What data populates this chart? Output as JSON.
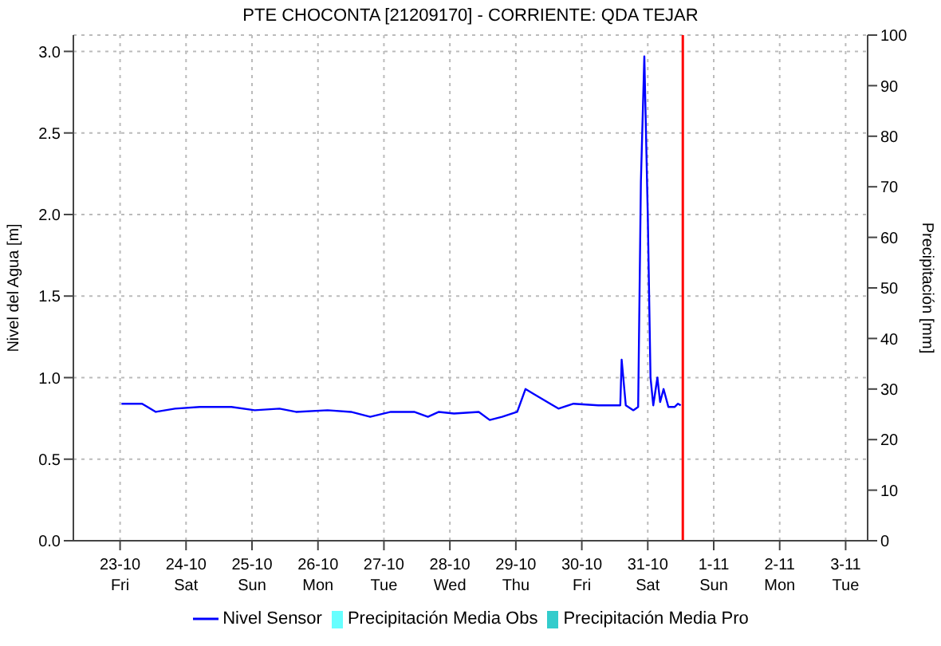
{
  "chart_data": {
    "type": "line",
    "title": "PTE CHOCONTA [21209170] - CORRIENTE: QDA TEJAR",
    "ylabel": "Nivel del Agua [m]",
    "y2label": "Precipitación [mm]",
    "xlim": [
      "--10-22T07:00",
      "--11-03T08:00"
    ],
    "xticks": [
      {
        "value": "--10-23",
        "label": "23-10\nFri"
      },
      {
        "value": "--10-24",
        "label": "24-10\nSat"
      },
      {
        "value": "--10-25",
        "label": "25-10\nSun"
      },
      {
        "value": "--10-26",
        "label": "26-10\nMon"
      },
      {
        "value": "--10-27",
        "label": "27-10\nTue"
      },
      {
        "value": "--10-28",
        "label": "28-10\nWed"
      },
      {
        "value": "--10-29",
        "label": "29-10\nThu"
      },
      {
        "value": "--10-30",
        "label": "30-10\nFri"
      },
      {
        "value": "--10-31",
        "label": "31-10\nSat"
      },
      {
        "value": "--11-01",
        "label": "1-11\nSun"
      },
      {
        "value": "--11-02",
        "label": "2-11\nMon"
      },
      {
        "value": "--11-03",
        "label": "3-11\nTue"
      }
    ],
    "ylim": [
      0,
      3.1
    ],
    "yticks": [
      {
        "value": 0,
        "label": "0.0"
      },
      {
        "value": 0.5,
        "label": "0.5"
      },
      {
        "value": 1,
        "label": "1.0"
      },
      {
        "value": 1.5,
        "label": "1.5"
      },
      {
        "value": 2,
        "label": "2.0"
      },
      {
        "value": 2.5,
        "label": "2.5"
      },
      {
        "value": 3,
        "label": "3.0"
      }
    ],
    "y2lim": [
      0,
      100
    ],
    "y2ticks": [
      0,
      10,
      20,
      30,
      40,
      50,
      60,
      70,
      80,
      90,
      100
    ],
    "grid": true,
    "legend": "bottom",
    "marker": "none",
    "line_style": "solid",
    "ref_lines": [
      {
        "axis": "x",
        "value": "--10-31T12:45",
        "color": "#ff0000"
      }
    ],
    "series": [
      {
        "name": "Nivel Sensor",
        "color": "#0000ff",
        "x": [
          "--10-23T00:30",
          "--10-23T08:00",
          "--10-23T13:00",
          "--10-23T20:00",
          "--10-24T05:00",
          "--10-24T16:30",
          "--10-25T01:00",
          "--10-25T10:00",
          "--10-25T16:00",
          "--10-26T03:30",
          "--10-26T12:00",
          "--10-26T19:00",
          "--10-27T02:30",
          "--10-27T11:00",
          "--10-27T16:00",
          "--10-27T20:00",
          "--10-28T01:30",
          "--10-28T10:30",
          "--10-28T14:30",
          "--10-28T19:00",
          "--10-29T00:30",
          "--10-29T03:30",
          "--10-29T06:30",
          "--10-29T15:30",
          "--10-29T21:00",
          "--10-30T06:00",
          "--10-30T14:00",
          "--10-30T14:30",
          "--10-30T16:00",
          "--10-30T18:45",
          "--10-30T20:30",
          "--10-30T21:30",
          "--10-30T22:45",
          "--10-31T00:00",
          "--10-31T01:00",
          "--10-31T02:00",
          "--10-31T03:30",
          "--10-31T04:30",
          "--10-31T05:45",
          "--10-31T07:30",
          "--10-31T09:45",
          "--10-31T11:00",
          "--10-31T12:00"
        ],
        "values": [
          0.84,
          0.84,
          0.79,
          0.81,
          0.82,
          0.82,
          0.8,
          0.81,
          0.79,
          0.8,
          0.79,
          0.76,
          0.79,
          0.79,
          0.76,
          0.79,
          0.78,
          0.79,
          0.74,
          0.76,
          0.79,
          0.93,
          0.9,
          0.81,
          0.84,
          0.83,
          0.83,
          1.11,
          0.83,
          0.8,
          0.82,
          2.2,
          2.97,
          2.0,
          1.0,
          0.83,
          1.0,
          0.85,
          0.93,
          0.82,
          0.82,
          0.84,
          0.83
        ]
      },
      {
        "name": "Precipitación Media Obs",
        "type": "bar",
        "axis": "y2",
        "color": "#66ffff"
      },
      {
        "name": "Precipitación Media Pro",
        "type": "bar",
        "axis": "y2",
        "color": "#33cccc"
      }
    ]
  }
}
